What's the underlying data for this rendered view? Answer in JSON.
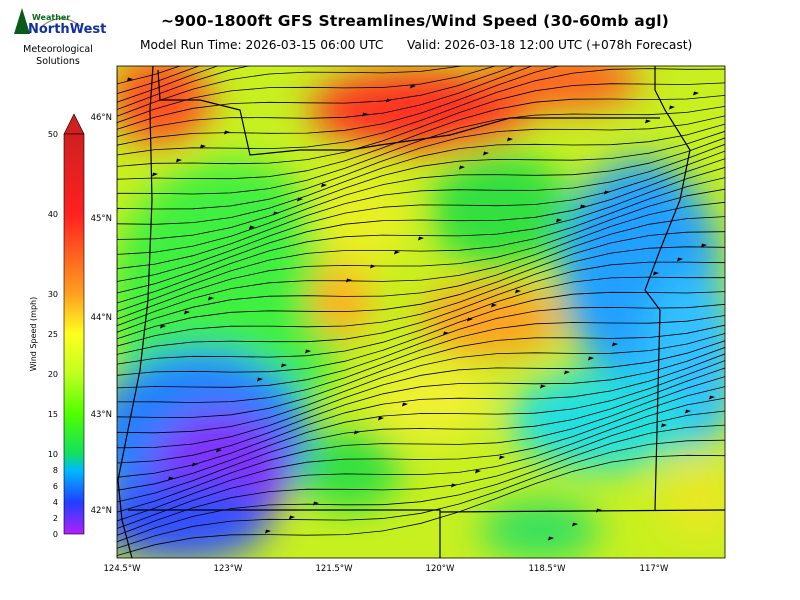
{
  "header": {
    "title": "~900-1800ft GFS Streamlines/Wind Speed (30-60mb agl)",
    "model_run": "Model Run Time: 2026-03-15 06:00 UTC",
    "valid": "Valid: 2026-03-18 12:00 UTC  (+078h Forecast)"
  },
  "logo": {
    "word1": "Weather",
    "word2": "NorthWest",
    "line1": "Meteorological",
    "line2": "Solutions"
  },
  "colorbar": {
    "label": "Wind Speed (mph)",
    "ticks": [
      "0",
      "2",
      "4",
      "6",
      "8",
      "10",
      "15",
      "20",
      "25",
      "30",
      "40",
      "50"
    ]
  },
  "map": {
    "lat_labels": [
      "46°N",
      "45°N",
      "44°N",
      "43°N",
      "42°N"
    ],
    "lon_labels": [
      "124.5°W",
      "123°W",
      "121.5°W",
      "120°W",
      "118.5°W",
      "117°W"
    ],
    "colors": {
      "violet": "#a020f0",
      "blue": "#2060ff",
      "cyan": "#00ccff",
      "green": "#22e022",
      "yellow": "#f0f020",
      "orange": "#ffa020",
      "red": "#ff2020"
    }
  }
}
